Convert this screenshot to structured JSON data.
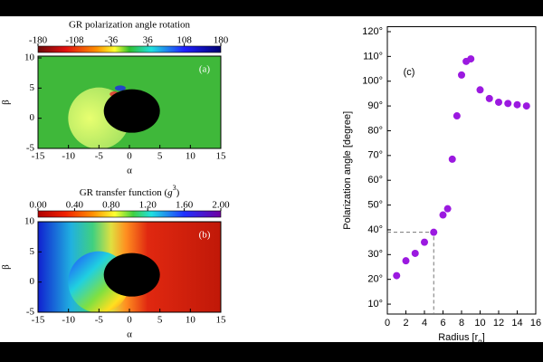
{
  "chart_data": [
    {
      "type": "heatmap",
      "title": "GR polarization angle rotation",
      "label": "(a)",
      "xlabel": "α",
      "ylabel": "β",
      "xlim": [
        -15,
        15
      ],
      "ylim": [
        -5,
        10
      ],
      "xticks": [
        -15,
        -10,
        -5,
        0,
        5,
        10,
        15
      ],
      "yticks": [
        -5,
        0,
        5,
        10
      ],
      "colorbar": {
        "lim": [
          -180,
          180
        ],
        "ticks": [
          -180,
          -108,
          -36,
          36,
          108,
          180
        ]
      }
    },
    {
      "type": "heatmap",
      "title_parts": [
        "GR transfer function (",
        "g",
        "3",
        ")"
      ],
      "label": "(b)",
      "xlabel": "α",
      "ylabel": "β",
      "xlim": [
        -15,
        15
      ],
      "ylim": [
        -5,
        10
      ],
      "xticks": [
        -15,
        -10,
        -5,
        0,
        5,
        10,
        15
      ],
      "yticks": [
        -5,
        0,
        5,
        10
      ],
      "colorbar": {
        "lim": [
          0,
          2
        ],
        "ticks": [
          {
            "value": 0,
            "label": "0.00"
          },
          {
            "value": 0.4,
            "label": "0.40"
          },
          {
            "value": 0.8,
            "label": "0.80"
          },
          {
            "value": 1.2,
            "label": "1.20"
          },
          {
            "value": 1.6,
            "label": "1.60"
          },
          {
            "value": 2,
            "label": "2.00"
          }
        ]
      }
    },
    {
      "type": "scatter",
      "label": "(c)",
      "ylabel": "Polarization angle [degree]",
      "xlabel_parts": [
        "Radius [r",
        "g",
        "]"
      ],
      "color": "#9b19e0",
      "x": [
        1,
        2,
        3,
        4,
        5,
        6,
        6.5,
        7,
        7.5,
        8,
        8.5,
        9,
        10,
        11,
        12,
        13,
        14,
        15
      ],
      "values": [
        21.5,
        27.5,
        30.5,
        35,
        39,
        46,
        48.5,
        68.5,
        86,
        102.5,
        108,
        109,
        96.5,
        93,
        91.5,
        91,
        90.5,
        90
      ],
      "guide": {
        "x": 5,
        "y": 39
      },
      "xlim": [
        0,
        16
      ],
      "ylim": [
        6,
        122
      ],
      "xticks": [
        0,
        2,
        4,
        6,
        8,
        10,
        12,
        14,
        16
      ],
      "yticks": [
        {
          "value": 10,
          "label": "10°"
        },
        {
          "value": 20,
          "label": "20°"
        },
        {
          "value": 30,
          "label": "30°"
        },
        {
          "value": 40,
          "label": "40°"
        },
        {
          "value": 50,
          "label": "50°"
        },
        {
          "value": 60,
          "label": "60°"
        },
        {
          "value": 70,
          "label": "70°"
        },
        {
          "value": 80,
          "label": "80°"
        },
        {
          "value": 90,
          "label": "90°"
        },
        {
          "value": 100,
          "label": "100°"
        },
        {
          "value": 110,
          "label": "110°"
        },
        {
          "value": 120,
          "label": "120°"
        }
      ]
    }
  ]
}
